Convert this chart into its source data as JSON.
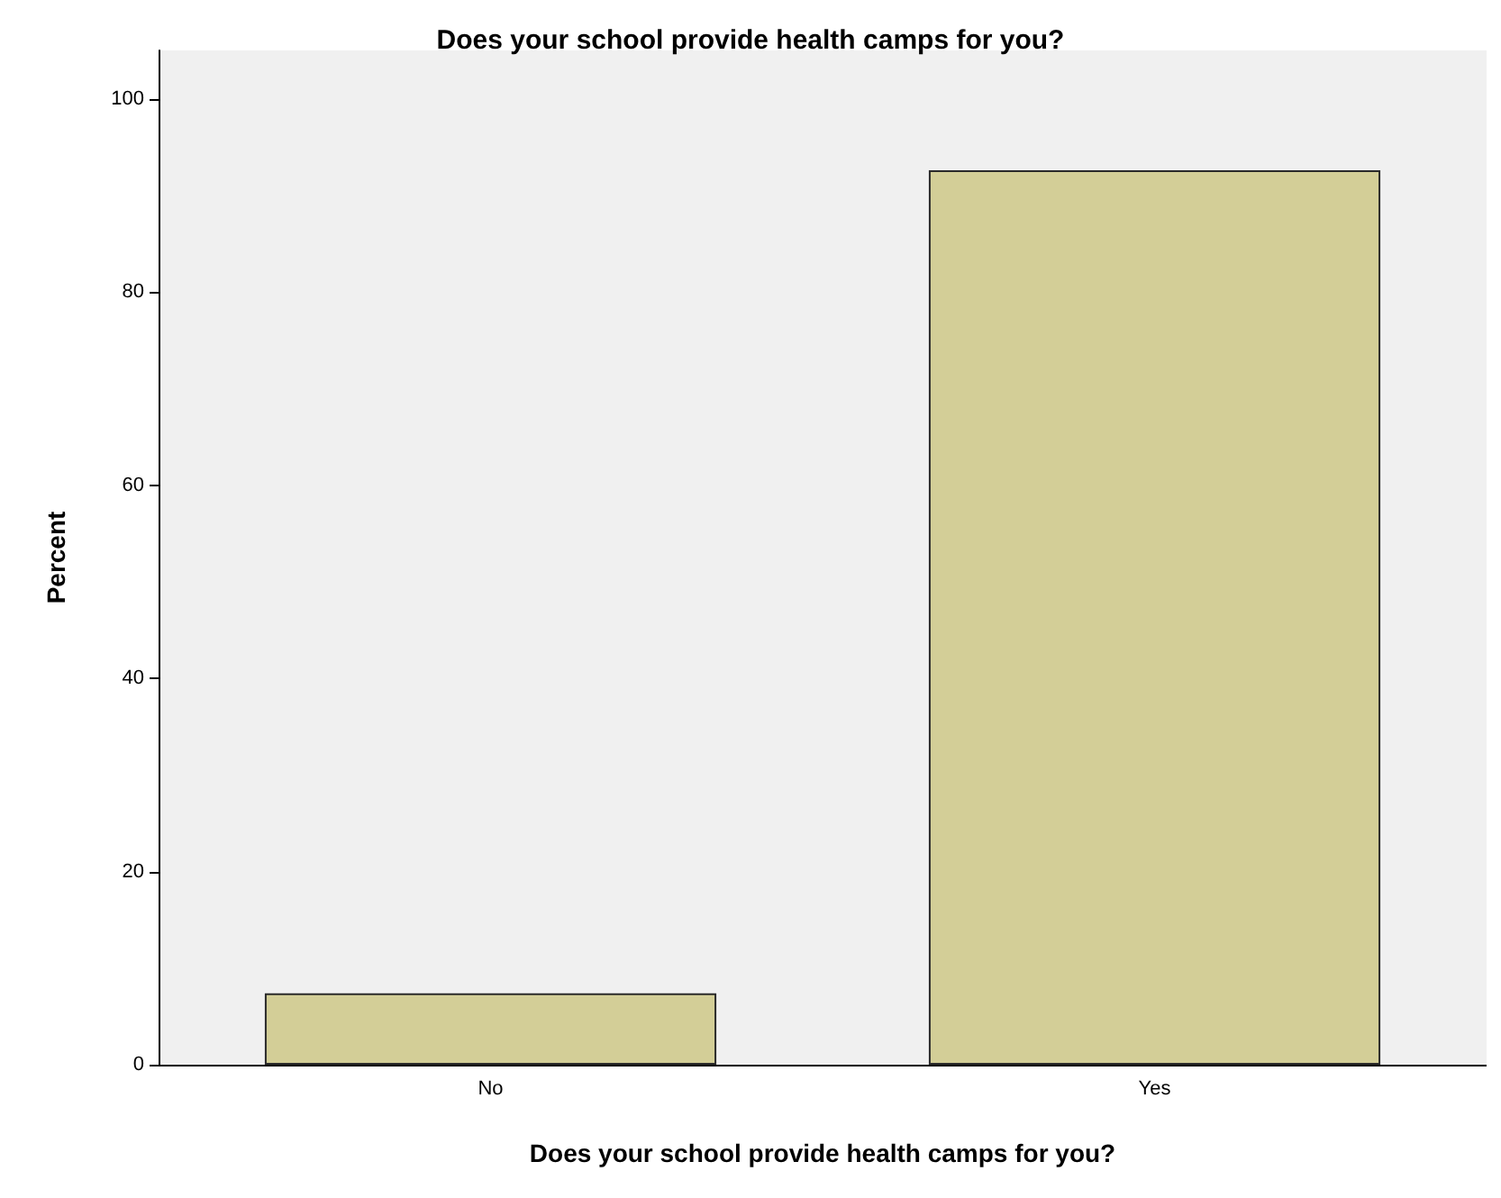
{
  "chart_data": {
    "type": "bar",
    "title": "Does your school provide health camps for you?",
    "xlabel": "Does your school provide health camps for you?",
    "ylabel": "Percent",
    "categories": [
      "No",
      "Yes"
    ],
    "values": [
      7.4,
      92.6
    ],
    "color": "#d3ce97",
    "ylim": [
      0,
      105
    ],
    "yticks": [
      0,
      20,
      40,
      60,
      80,
      100
    ],
    "grid": false
  }
}
